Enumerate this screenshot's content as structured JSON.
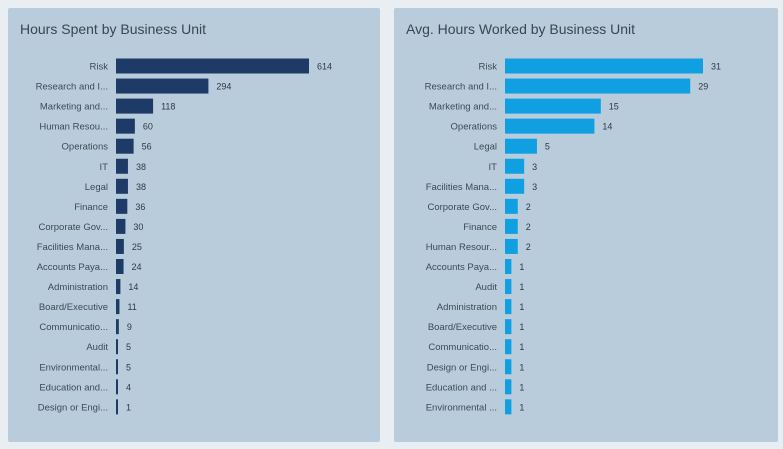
{
  "colors": {
    "left_bar": "#1e3a66",
    "right_bar": "#109fe0"
  },
  "chart_data": [
    {
      "type": "bar",
      "orientation": "horizontal",
      "title": "Hours Spent by Business Unit",
      "categories": [
        "Risk",
        "Research and I...",
        "Marketing and...",
        "Human Resou...",
        "Operations",
        "IT",
        "Legal",
        "Finance",
        "Corporate Gov...",
        "Facilities Mana...",
        "Accounts Paya...",
        "Administration",
        "Board/Executive",
        "Communicatio...",
        "Audit",
        "Environmental...",
        "Education and...",
        "Design or Engi..."
      ],
      "values": [
        614,
        294,
        118,
        60,
        56,
        38,
        38,
        36,
        30,
        25,
        24,
        14,
        11,
        9,
        5,
        5,
        4,
        1
      ],
      "xlim": [
        0,
        614
      ]
    },
    {
      "type": "bar",
      "orientation": "horizontal",
      "title": "Avg. Hours Worked by Business Unit",
      "categories": [
        "Risk",
        "Research and I...",
        "Marketing and...",
        "Operations",
        "Legal",
        "IT",
        "Facilities Mana...",
        "Corporate Gov...",
        "Finance",
        "Human Resour...",
        "Accounts Paya...",
        "Audit",
        "Administration",
        "Board/Executive",
        "Communicatio...",
        "Design or Engi...",
        "Education and ...",
        "Environmental ..."
      ],
      "values": [
        31,
        29,
        15,
        14,
        5,
        3,
        3,
        2,
        2,
        2,
        1,
        1,
        1,
        1,
        1,
        1,
        1,
        1
      ],
      "xlim": [
        0,
        31
      ]
    }
  ]
}
